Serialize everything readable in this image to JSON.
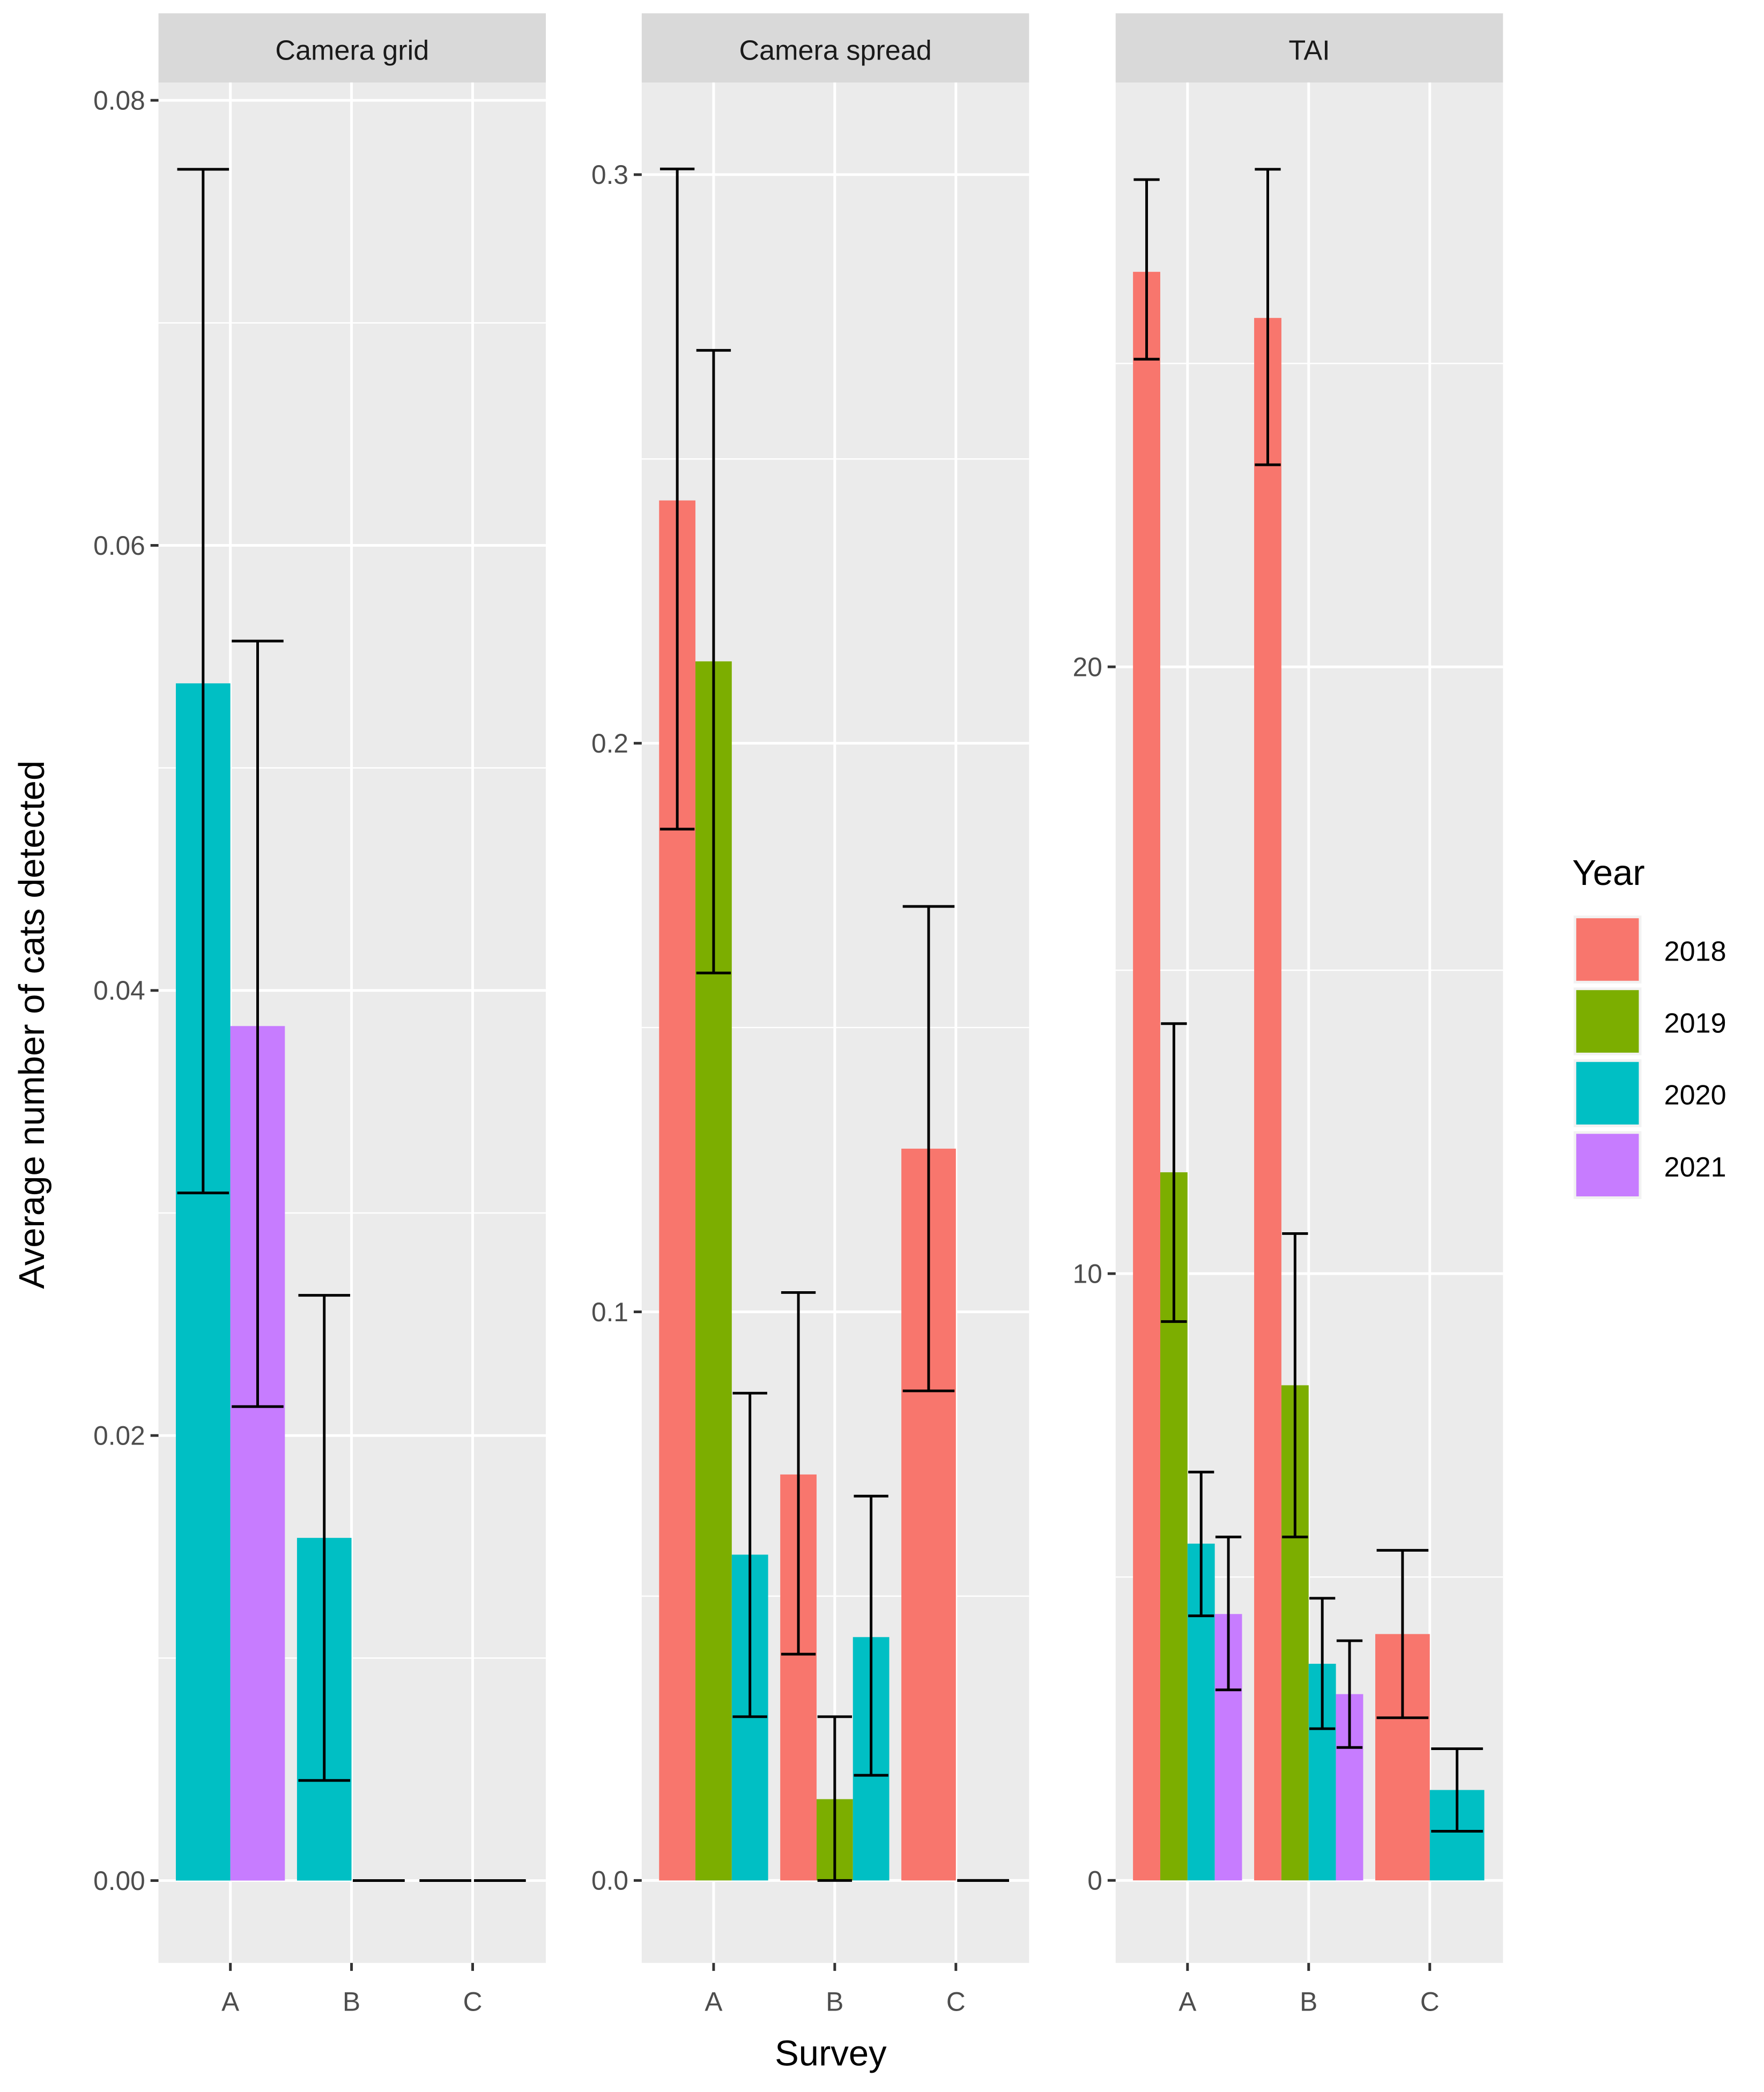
{
  "chart_data": {
    "type": "bar",
    "xlabel": "Survey",
    "ylabel": "Average number of cats detected",
    "legend": {
      "title": "Year",
      "placement": "right",
      "entries": [
        "2018",
        "2019",
        "2020",
        "2021"
      ]
    },
    "colors": {
      "2018": "#F8766D",
      "2019": "#7CAE00",
      "2020": "#00BFC4",
      "2021": "#C77CFF"
    },
    "grid": true,
    "panels": [
      {
        "title": "Camera grid",
        "categories": [
          "A",
          "B",
          "C"
        ],
        "ylim": [
          -0.0037,
          0.0808
        ],
        "yticks": [
          0,
          0.02,
          0.04,
          0.06,
          0.08
        ],
        "ytick_labels": [
          "0.00",
          "0.02",
          "0.04",
          "0.06",
          "0.08"
        ],
        "bars": [
          {
            "category": "A",
            "year": "2020",
            "value": 0.0538,
            "lower": 0.0309,
            "upper": 0.0769
          },
          {
            "category": "A",
            "year": "2021",
            "value": 0.0384,
            "lower": 0.0213,
            "upper": 0.0557
          },
          {
            "category": "B",
            "year": "2020",
            "value": 0.0154,
            "lower": 0.0045,
            "upper": 0.0263
          },
          {
            "category": "B",
            "year": "2021",
            "value": 0,
            "lower": 0,
            "upper": 0
          },
          {
            "category": "C",
            "year": "2020",
            "value": 0,
            "lower": 0,
            "upper": 0
          },
          {
            "category": "C",
            "year": "2021",
            "value": 0,
            "lower": 0,
            "upper": 0
          }
        ]
      },
      {
        "title": "Camera spread",
        "categories": [
          "A",
          "B",
          "C"
        ],
        "ylim": [
          -0.0145,
          0.3162
        ],
        "yticks": [
          0,
          0.1,
          0.2,
          0.3
        ],
        "ytick_labels": [
          "0.0",
          "0.1",
          "0.2",
          "0.3"
        ],
        "bars": [
          {
            "category": "A",
            "year": "2018",
            "value": 0.2427,
            "lower": 0.1849,
            "upper": 0.301
          },
          {
            "category": "A",
            "year": "2019",
            "value": 0.2144,
            "lower": 0.1596,
            "upper": 0.2691
          },
          {
            "category": "A",
            "year": "2020",
            "value": 0.0573,
            "lower": 0.0288,
            "upper": 0.0857
          },
          {
            "category": "B",
            "year": "2018",
            "value": 0.0714,
            "lower": 0.0398,
            "upper": 0.1034
          },
          {
            "category": "B",
            "year": "2019",
            "value": 0.0143,
            "lower": 0,
            "upper": 0.0288
          },
          {
            "category": "B",
            "year": "2020",
            "value": 0.0428,
            "lower": 0.0185,
            "upper": 0.0676
          },
          {
            "category": "C",
            "year": "2018",
            "value": 0.1287,
            "lower": 0.0861,
            "upper": 0.1713
          },
          {
            "category": "C",
            "year": "2020",
            "value": 0,
            "lower": 0,
            "upper": 0
          }
        ]
      },
      {
        "title": "TAI",
        "categories": [
          "A",
          "B",
          "C"
        ],
        "ylim": [
          -1.36,
          29.63
        ],
        "yticks": [
          0,
          10,
          20
        ],
        "ytick_labels": [
          "0",
          "10",
          "20"
        ],
        "bars": [
          {
            "category": "A",
            "year": "2018",
            "value": 26.51,
            "lower": 25.07,
            "upper": 28.03
          },
          {
            "category": "A",
            "year": "2019",
            "value": 11.67,
            "lower": 9.21,
            "upper": 14.12
          },
          {
            "category": "A",
            "year": "2020",
            "value": 5.55,
            "lower": 4.36,
            "upper": 6.73
          },
          {
            "category": "A",
            "year": "2021",
            "value": 4.39,
            "lower": 3.14,
            "upper": 5.66
          },
          {
            "category": "B",
            "year": "2018",
            "value": 25.75,
            "lower": 23.33,
            "upper": 28.2
          },
          {
            "category": "B",
            "year": "2019",
            "value": 8.16,
            "lower": 5.66,
            "upper": 10.66
          },
          {
            "category": "B",
            "year": "2020",
            "value": 3.57,
            "lower": 2.5,
            "upper": 4.65
          },
          {
            "category": "B",
            "year": "2021",
            "value": 3.07,
            "lower": 2.19,
            "upper": 3.95
          },
          {
            "category": "C",
            "year": "2018",
            "value": 4.06,
            "lower": 2.68,
            "upper": 5.44
          },
          {
            "category": "C",
            "year": "2020",
            "value": 1.49,
            "lower": 0.81,
            "upper": 2.17
          }
        ]
      }
    ]
  }
}
